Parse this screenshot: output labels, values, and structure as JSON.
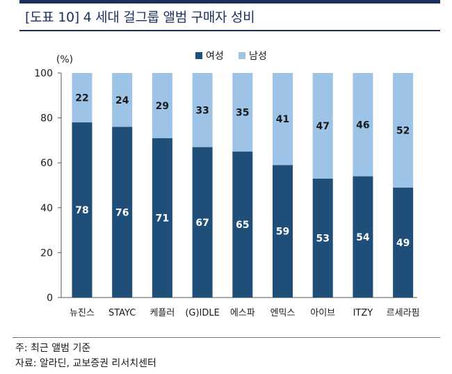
{
  "title": "[도표 10] 4 세대 걸그룹 앨범 구매자 성비",
  "colors": {
    "female": "#1f4e79",
    "male": "#9dc3e6",
    "accent": "#1b2f5e"
  },
  "chart_data": {
    "type": "bar",
    "stacked": true,
    "title": "[도표 10] 4 세대 걸그룹 앨범 구매자 성비",
    "unit_label": "(%)",
    "categories": [
      "뉴진스",
      "STAYC",
      "케플러",
      "(G)IDLE",
      "에스파",
      "엔믹스",
      "아이브",
      "ITZY",
      "르세라핌"
    ],
    "series": [
      {
        "name": "여성",
        "values": [
          78,
          76,
          71,
          67,
          65,
          59,
          53,
          54,
          49
        ]
      },
      {
        "name": "남성",
        "values": [
          22,
          24,
          29,
          33,
          35,
          41,
          47,
          46,
          52
        ]
      }
    ],
    "ylim": [
      0,
      100
    ],
    "yticks": [
      "0",
      "20",
      "40",
      "60",
      "80",
      "100"
    ],
    "legend_position": "top-center"
  },
  "notes": {
    "note1": "주: 최근 앨범 기준",
    "note2": "자료: 알라딘, 교보증권 리서치센터"
  }
}
